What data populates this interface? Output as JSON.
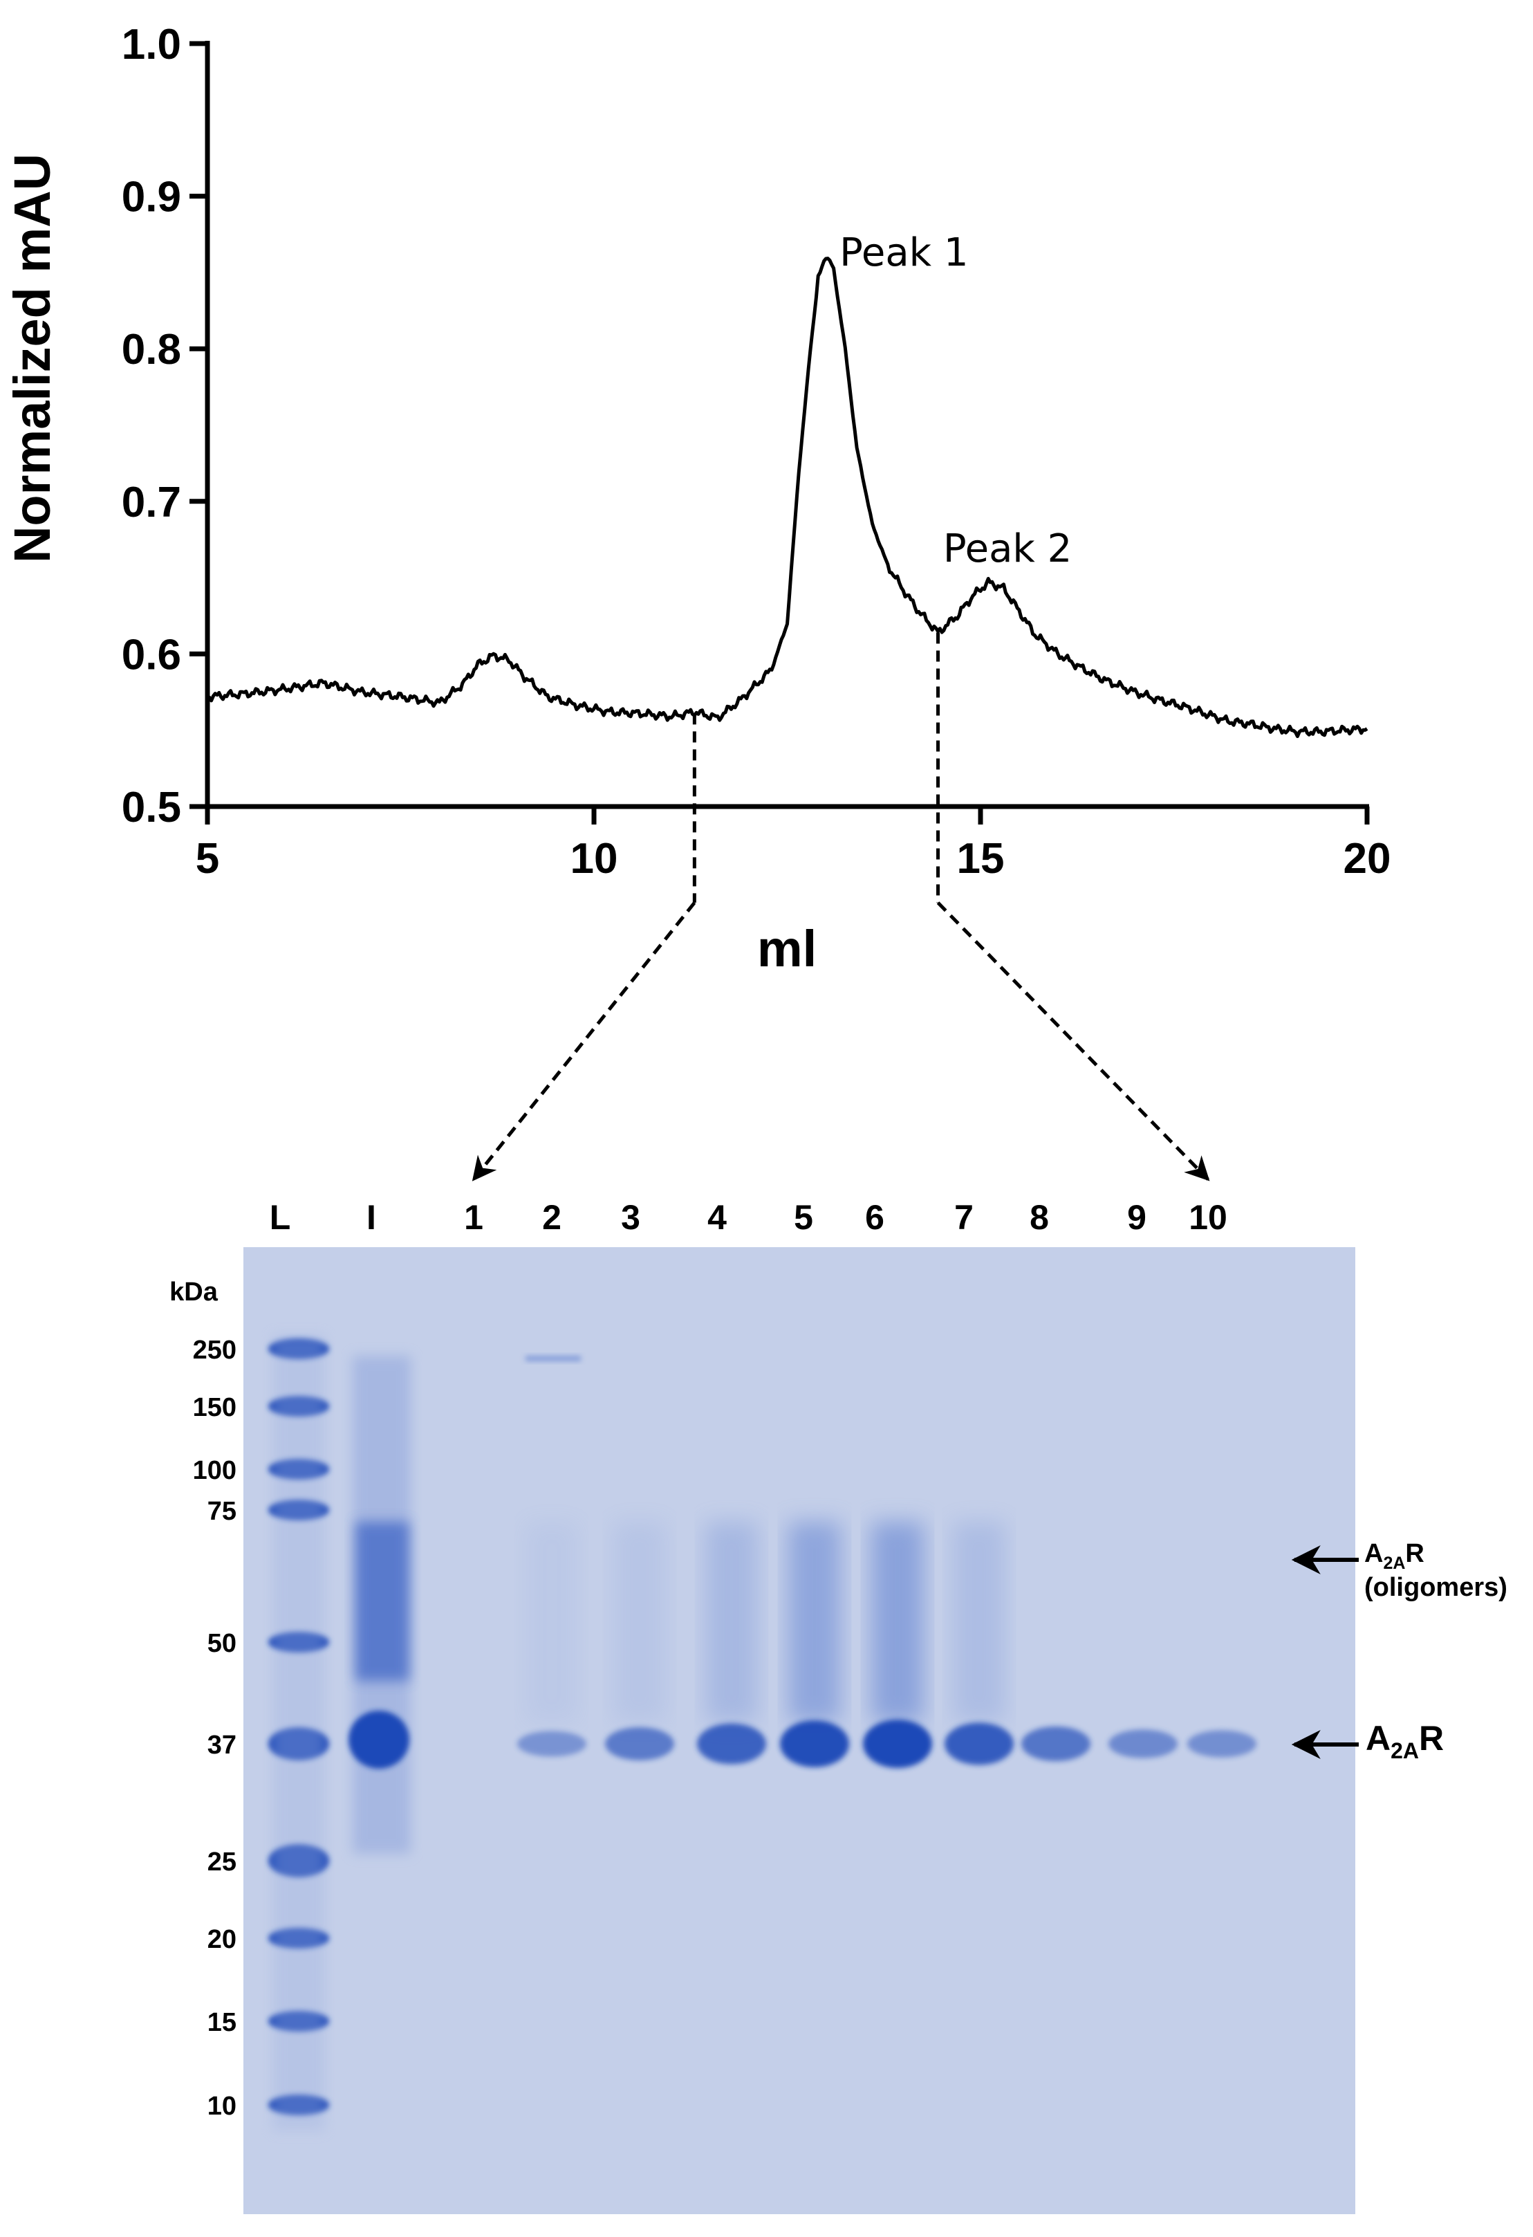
{
  "chart_data": [
    {
      "type": "line",
      "ylabel": "Normalized mAU",
      "xlabel": "ml",
      "xlim": [
        5,
        20
      ],
      "ylim": [
        0.5,
        1.0
      ],
      "x_ticks": [
        "5",
        "10",
        "15",
        "20"
      ],
      "y_ticks": [
        "0.5",
        "0.6",
        "0.7",
        "0.8",
        "0.9",
        "1.0"
      ],
      "grid": false,
      "series": [
        {
          "x": [
            5.0,
            5.5,
            6.0,
            6.5,
            7.0,
            7.5,
            8.0,
            8.3,
            8.5,
            8.7,
            8.9,
            9.1,
            9.4,
            9.8,
            10.2,
            10.6,
            11.0,
            11.3,
            11.6,
            11.9,
            12.1,
            12.3,
            12.5,
            12.65,
            12.8,
            12.9,
            13.0,
            13.1,
            13.25,
            13.4,
            13.6,
            13.8,
            14.0,
            14.2,
            14.45,
            14.7,
            14.9,
            15.1,
            15.3,
            15.5,
            15.7,
            16.0,
            16.3,
            16.6,
            17.0,
            17.3,
            17.6,
            17.9,
            18.2,
            18.5,
            18.8,
            19.1,
            19.4,
            19.7,
            20.0
          ],
          "y": [
            0.572,
            0.574,
            0.577,
            0.581,
            0.575,
            0.572,
            0.568,
            0.58,
            0.593,
            0.599,
            0.596,
            0.585,
            0.572,
            0.566,
            0.562,
            0.561,
            0.559,
            0.562,
            0.558,
            0.57,
            0.58,
            0.59,
            0.62,
            0.72,
            0.8,
            0.845,
            0.862,
            0.852,
            0.8,
            0.735,
            0.685,
            0.658,
            0.642,
            0.628,
            0.614,
            0.625,
            0.638,
            0.647,
            0.643,
            0.628,
            0.613,
            0.6,
            0.591,
            0.583,
            0.575,
            0.57,
            0.566,
            0.561,
            0.556,
            0.554,
            0.551,
            0.549,
            0.549,
            0.55,
            0.551
          ]
        }
      ],
      "annotations": [
        {
          "text": "Peak 1",
          "x": 13.4,
          "y": 0.86
        },
        {
          "text": "Peak 2",
          "x": 15.5,
          "y": 0.665
        }
      ],
      "fraction_markers": [
        {
          "x": 11.3,
          "y": 0.561,
          "to_lane": "1"
        },
        {
          "x": 14.45,
          "y": 0.614,
          "to_lane": "10"
        }
      ]
    }
  ],
  "gel": {
    "lanes": [
      "L",
      "I",
      "1",
      "2",
      "3",
      "4",
      "5",
      "6",
      "7",
      "8",
      "9",
      "10"
    ],
    "kda_header": "kDa",
    "markers": [
      "250",
      "150",
      "100",
      "75",
      "50",
      "37",
      "25",
      "20",
      "15",
      "10"
    ],
    "annotations": {
      "oligomers": {
        "main": "A",
        "sub": "2A",
        "tail": "R",
        "line2": "(oligomers)"
      },
      "monomer": {
        "main": "A",
        "sub": "2A",
        "tail": "R"
      }
    },
    "band_intensity_37kDa": {
      "1": 0.0,
      "2": 0.25,
      "3": 0.5,
      "4": 0.75,
      "5": 0.95,
      "6": 1.0,
      "7": 0.8,
      "8": 0.55,
      "9": 0.35,
      "10": 0.3
    },
    "colors": {
      "gel_bg": "#c9d4ec",
      "band": "#1b49b8"
    }
  }
}
